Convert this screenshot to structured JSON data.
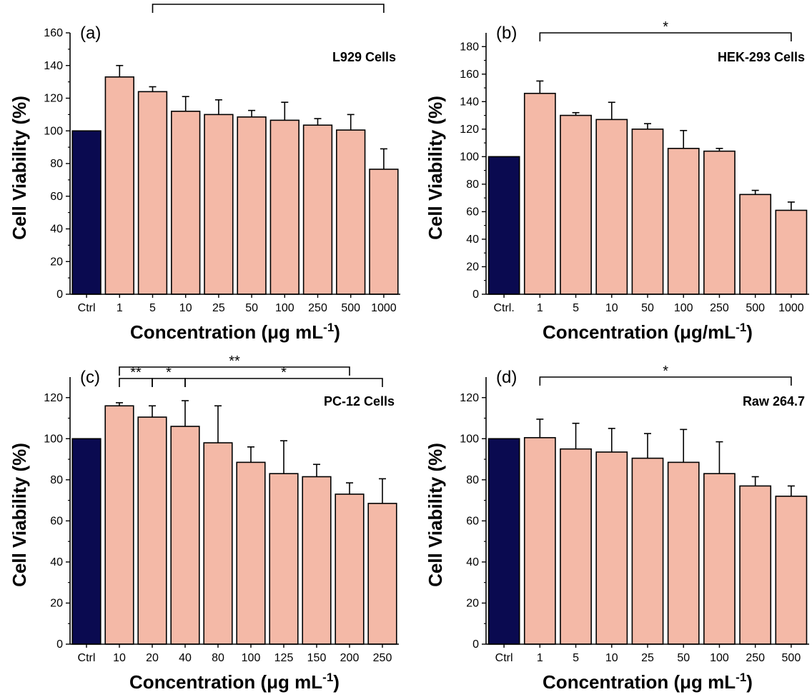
{
  "colors": {
    "control": "#0a0a50",
    "treatment": "#f4b9a7",
    "outline": "#000000"
  },
  "chart_data": [
    {
      "type": "bar",
      "panel_label": "(a)",
      "annotation": "L929 Cells",
      "xlabel_main": "Concentration (",
      "xlabel_unit": "μg mL",
      "xlabel_sup": "-1",
      "xlabel_end": ")",
      "ylabel": "Cell Viability (%)",
      "ylim": [
        0,
        160
      ],
      "yticks": [
        0,
        20,
        40,
        60,
        80,
        100,
        120,
        140,
        160
      ],
      "categories": [
        "Ctrl",
        "1",
        "5",
        "10",
        "25",
        "50",
        "100",
        "250",
        "500",
        "1000"
      ],
      "values": [
        100,
        133,
        124,
        112,
        110,
        108.5,
        106.5,
        103.5,
        100.5,
        76.5
      ],
      "errors": [
        0,
        7,
        3,
        9,
        9,
        4,
        11,
        4,
        9.5,
        12.5
      ],
      "significance": [
        {
          "from": 2,
          "to": 9,
          "label": "**",
          "level": 0
        }
      ]
    },
    {
      "type": "bar",
      "panel_label": "(b)",
      "annotation": "HEK-293 Cells",
      "xlabel_main": "Concentration (",
      "xlabel_unit": "μg/mL",
      "xlabel_sup": "-1",
      "xlabel_end": ")",
      "ylabel": "Cell Viability (%)",
      "ylim": [
        0,
        190
      ],
      "yticks": [
        0,
        20,
        40,
        60,
        80,
        100,
        120,
        140,
        160,
        180
      ],
      "categories": [
        "Ctrl.",
        "1",
        "5",
        "10",
        "50",
        "100",
        "250",
        "500",
        "1000"
      ],
      "values": [
        100,
        146,
        130,
        127,
        120,
        106,
        104,
        72.5,
        61
      ],
      "errors": [
        0,
        9,
        2,
        12.5,
        4,
        13,
        2,
        3,
        6
      ],
      "significance": [
        {
          "from": 1,
          "to": 8,
          "label": "*",
          "level": 0
        }
      ]
    },
    {
      "type": "bar",
      "panel_label": "(c)",
      "annotation": "PC-12 Cells",
      "xlabel_main": "Concentration (",
      "xlabel_unit": "μg mL",
      "xlabel_sup": "-1",
      "xlabel_end": ")",
      "ylabel": "Cell Viability (%)",
      "ylim": [
        0,
        130
      ],
      "yticks": [
        0,
        20,
        40,
        60,
        80,
        100,
        120
      ],
      "categories": [
        "Ctrl",
        "10",
        "20",
        "40",
        "80",
        "100",
        "125",
        "150",
        "200",
        "250"
      ],
      "values": [
        100,
        116,
        110.5,
        106,
        98,
        88.5,
        83,
        81.5,
        73,
        68.5
      ],
      "errors": [
        0,
        1.5,
        5.5,
        12.5,
        18,
        7.5,
        16,
        6,
        5.5,
        12
      ],
      "significance": [
        {
          "from": 1,
          "to": 8,
          "label": "**",
          "level": 2
        },
        {
          "from": 3,
          "to": 9,
          "label": "*",
          "level": 1
        },
        {
          "from": 1,
          "to": 2,
          "label": "**",
          "level": 1
        },
        {
          "from": 2,
          "to": 3,
          "label": "*",
          "level": 1
        }
      ]
    },
    {
      "type": "bar",
      "panel_label": "(d)",
      "annotation": "Raw 264.7",
      "xlabel_main": "Concentration (",
      "xlabel_unit": "μg mL",
      "xlabel_sup": "-1",
      "xlabel_end": ")",
      "ylabel": "Cell Viability (%)",
      "ylim": [
        0,
        130
      ],
      "yticks": [
        0,
        20,
        40,
        60,
        80,
        100,
        120
      ],
      "categories": [
        "Ctrl",
        "1",
        "5",
        "10",
        "25",
        "50",
        "100",
        "250",
        "500"
      ],
      "values": [
        100,
        100.5,
        95,
        93.5,
        90.5,
        88.5,
        83,
        77,
        72
      ],
      "errors": [
        0,
        9,
        12.5,
        11.5,
        12,
        16,
        15.5,
        4.5,
        5
      ],
      "significance": [
        {
          "from": 1,
          "to": 8,
          "label": "*",
          "level": 0
        }
      ]
    }
  ]
}
